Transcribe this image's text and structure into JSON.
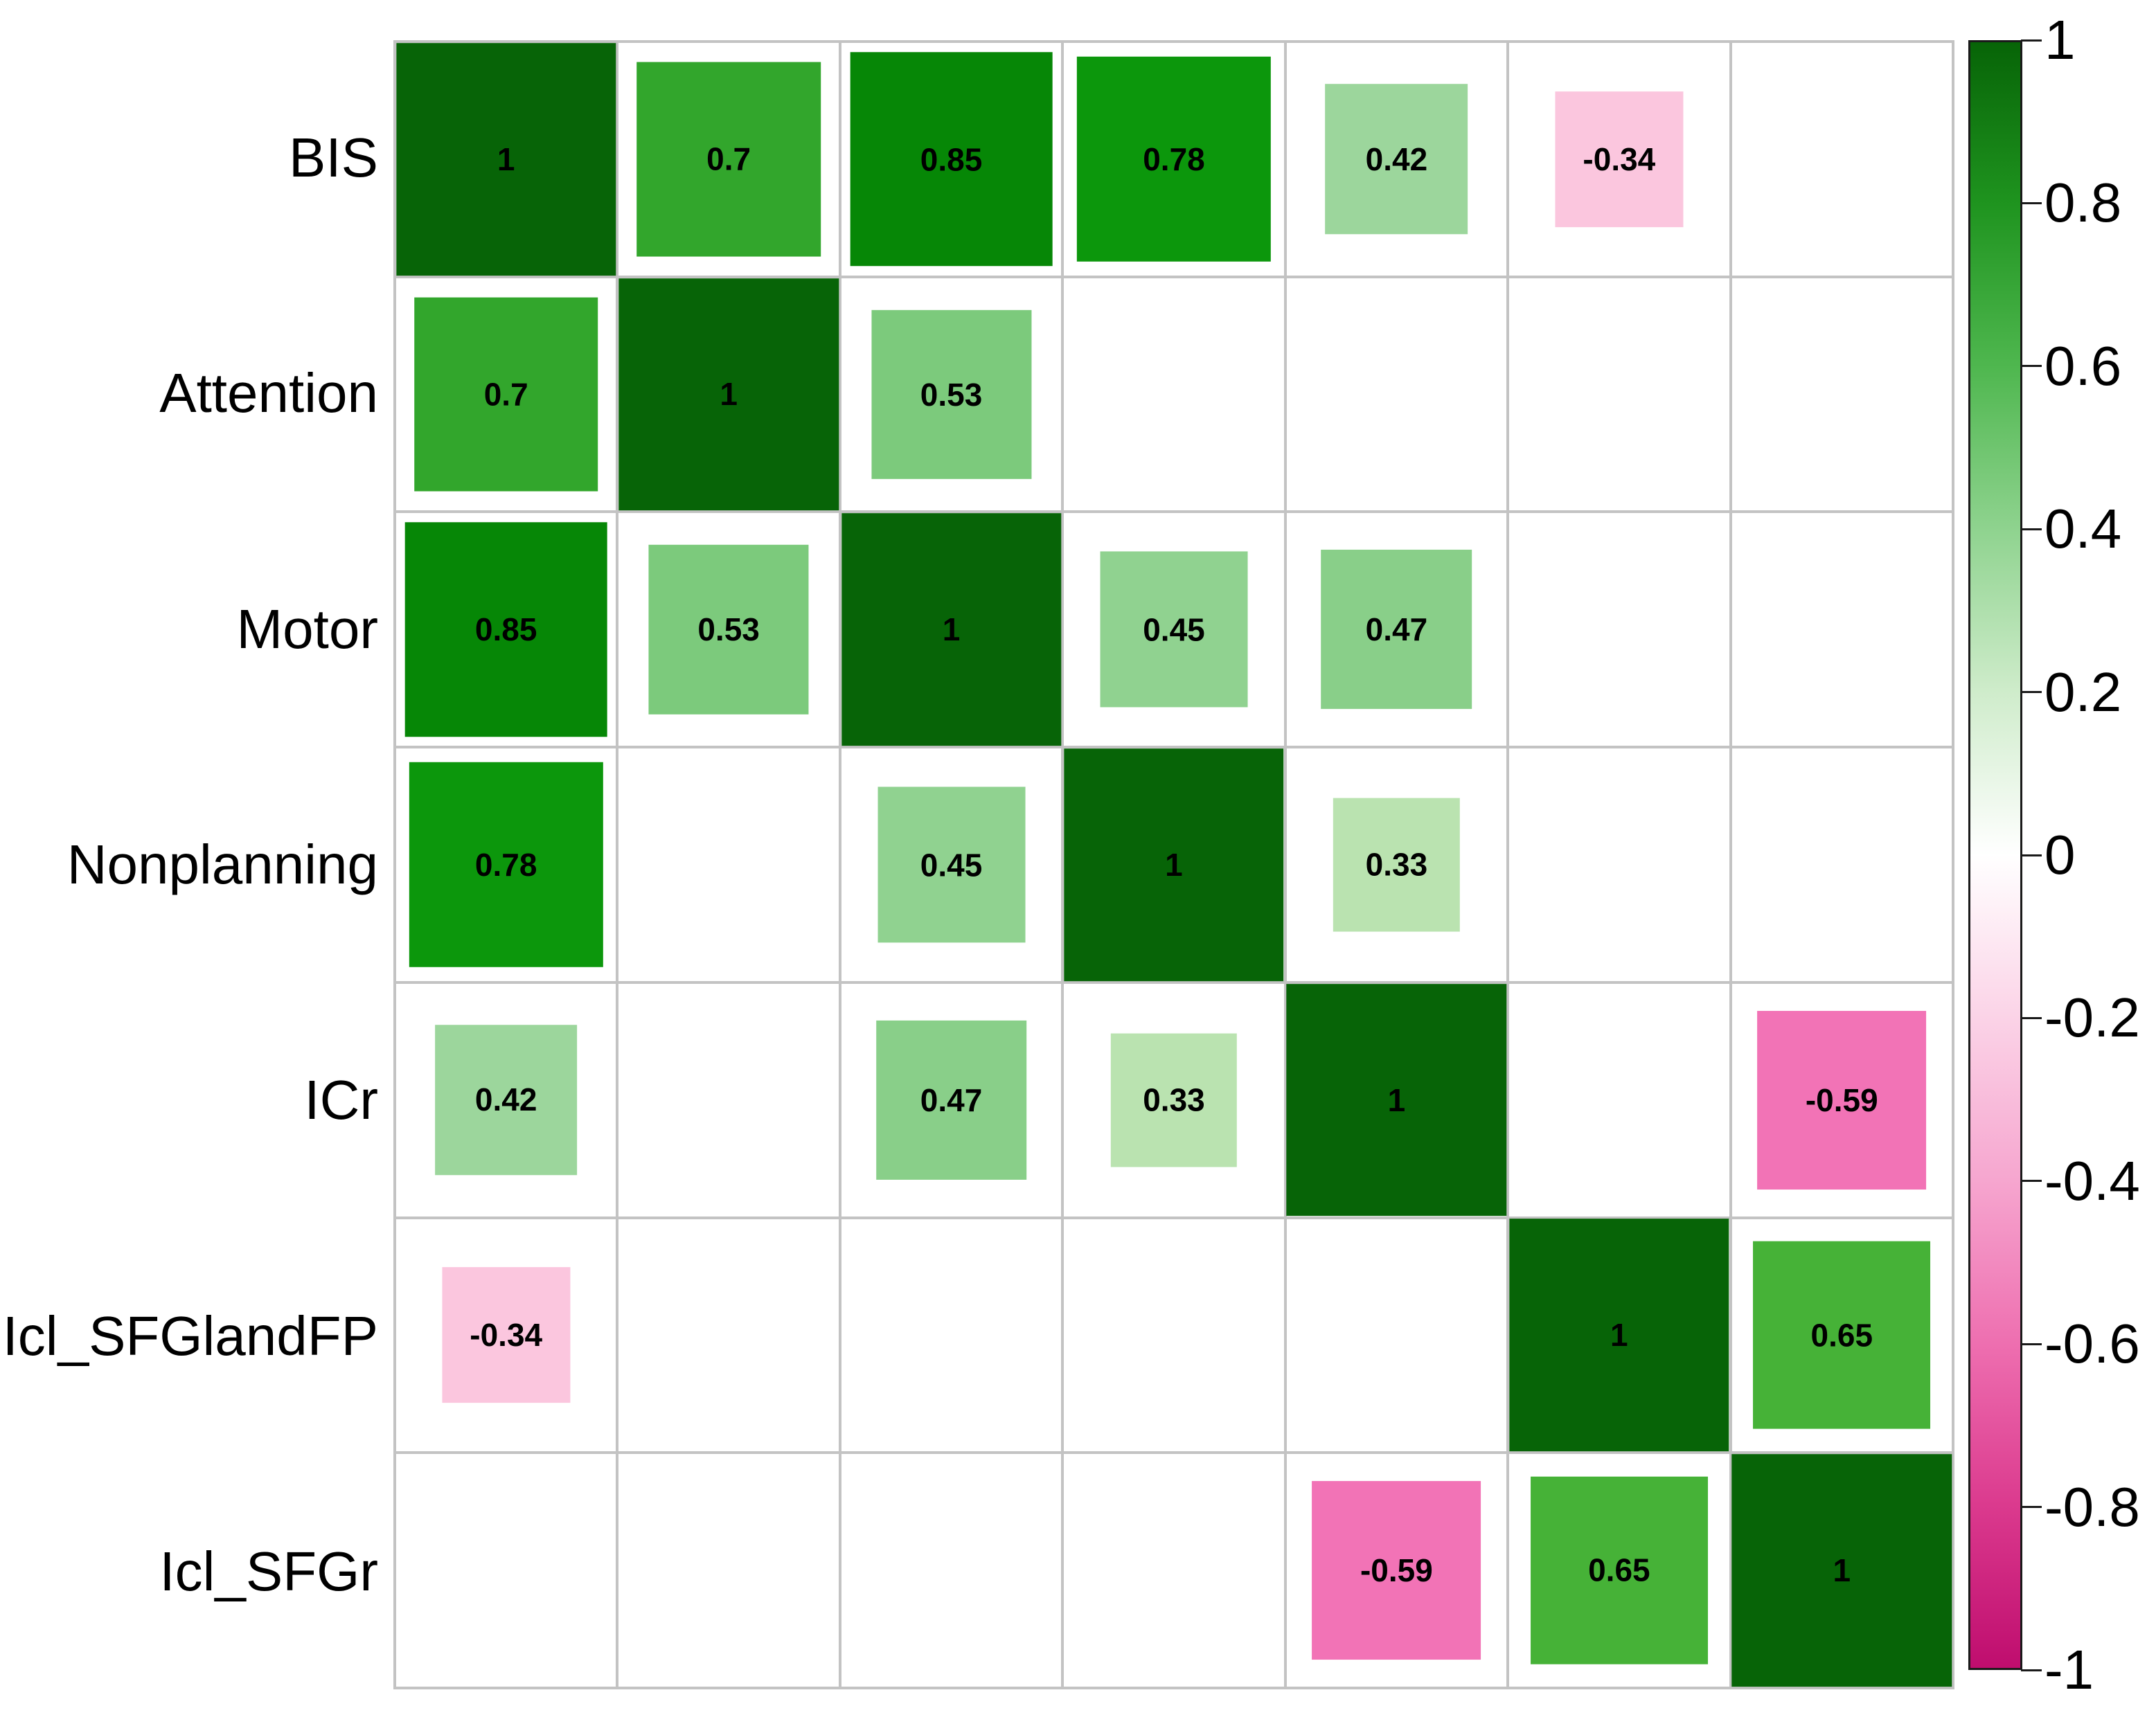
{
  "chart_data": {
    "type": "heatmap",
    "subtype": "correlation-matrix",
    "title": "",
    "variables": [
      "BIS",
      "Attention",
      "Motor",
      "Nonplanning",
      "ICr",
      "Icl_SFGlandFP",
      "Icl_SFGr"
    ],
    "matrix": [
      [
        1,
        0.7,
        0.85,
        0.78,
        0.42,
        -0.34,
        null
      ],
      [
        0.7,
        1,
        0.53,
        null,
        null,
        null,
        null
      ],
      [
        0.85,
        0.53,
        1,
        0.45,
        0.47,
        null,
        null
      ],
      [
        0.78,
        null,
        0.45,
        1,
        0.33,
        null,
        null
      ],
      [
        0.42,
        null,
        0.47,
        0.33,
        1,
        null,
        -0.59
      ],
      [
        -0.34,
        null,
        null,
        null,
        null,
        1,
        0.65
      ],
      [
        null,
        null,
        null,
        null,
        -0.59,
        0.65,
        1
      ]
    ],
    "value_range": [
      -1,
      1
    ],
    "size_encoding": "square side proportional to sqrt(|r|)",
    "grid_on": true,
    "gridline_color": "#c3c3c3",
    "value_text_color": "#000000",
    "cell_colors": {
      "1": "#076407",
      "0.85": "#068706",
      "0.78": "#0c970c",
      "0.7": "#32a62c",
      "0.65": "#46b237",
      "0.53": "#7cca7c",
      "0.47": "#89cf89",
      "0.45": "#90d290",
      "0.42": "#9cd69c",
      "0.33": "#bae3b0",
      "-0.34": "#fbc6de",
      "-0.59": "#f273b6"
    },
    "colorbar": {
      "position": "right",
      "min": -1,
      "max": 1,
      "tick_labels": [
        "1",
        "0.8",
        "0.6",
        "0.4",
        "0.2",
        "0",
        "-0.2",
        "-0.4",
        "-0.6",
        "-0.8",
        "-1"
      ],
      "border_color": "#1a1a1a",
      "gradient_stops_top_to_bottom": [
        "#076407",
        "#1f941f",
        "#4fb74f",
        "#8fd38f",
        "#cfeccb",
        "#ffffff",
        "#fbd3e7",
        "#f6a6cf",
        "#ee6fb0",
        "#db3a8e",
        "#bf0d6e"
      ]
    }
  }
}
